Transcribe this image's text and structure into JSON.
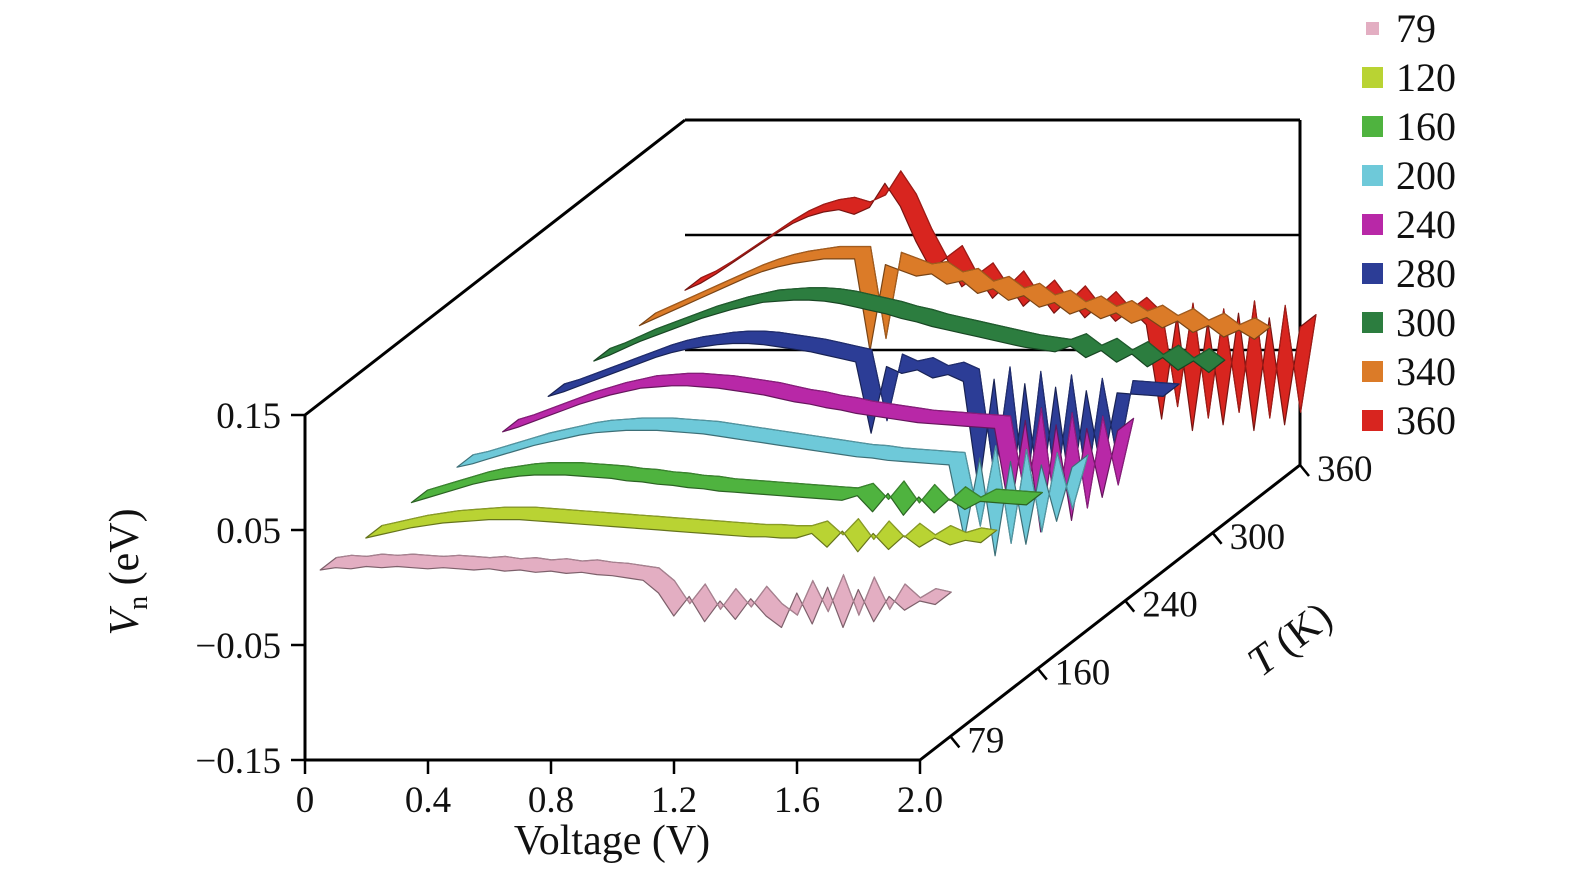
{
  "figure": {
    "background": "#ffffff"
  },
  "axes": {
    "x": {
      "label": "Voltage (V)",
      "ticks": [
        {
          "label": "0",
          "value": 0
        },
        {
          "label": "0.4",
          "value": 0.4
        },
        {
          "label": "0.8",
          "value": 0.8
        },
        {
          "label": "1.2",
          "value": 1.2
        },
        {
          "label": "1.6",
          "value": 1.6
        },
        {
          "label": "2.0",
          "value": 2.0
        }
      ]
    },
    "y": {
      "label": "V_n (eV)",
      "label_parts": {
        "variable": "V",
        "subscript": "n",
        "rest": " (eV)"
      },
      "ticks": [
        {
          "label": "0.15",
          "value": 0.15
        },
        {
          "label": "0.05",
          "value": 0.05
        },
        {
          "label": "−0.05",
          "value": -0.05
        },
        {
          "label": "−0.15",
          "value": -0.15
        }
      ],
      "grid_values": [
        0.05,
        -0.05
      ]
    },
    "z": {
      "label": "T (K)",
      "label_parts": {
        "variable": "T",
        "rest": " (K)"
      },
      "ticks": [
        "79",
        "160",
        "240",
        "300",
        "360"
      ]
    }
  },
  "legend": {
    "position": "top-right"
  },
  "chart_data": {
    "type": "line",
    "variant": "3d-waterfall",
    "title": "",
    "xlabel": "Voltage (V)",
    "ylabel": "V_n (eV)",
    "zlabel": "T (K)",
    "xlim": [
      0,
      2
    ],
    "ylim": [
      -0.15,
      0.15
    ],
    "temperatures_K": [
      79,
      120,
      160,
      200,
      240,
      280,
      300,
      340,
      360
    ],
    "x": [
      0,
      0.05,
      0.1,
      0.15,
      0.2,
      0.25,
      0.3,
      0.35,
      0.4,
      0.45,
      0.5,
      0.55,
      0.6,
      0.65,
      0.7,
      0.75,
      0.8,
      0.85,
      0.9,
      0.95,
      1,
      1.05,
      1.1,
      1.15,
      1.2,
      1.25,
      1.3,
      1.35,
      1.4,
      1.45,
      1.5,
      1.55,
      1.6,
      1.65,
      1.7,
      1.75,
      1.8,
      1.85,
      1.9,
      1.95,
      2
    ],
    "series": [
      {
        "name": "79",
        "temperature_K": 79,
        "color": "#e3aec2",
        "values": [
          0.005,
          0.007,
          0.006,
          0.008,
          0.007,
          0.008,
          0.007,
          0.006,
          0.007,
          0.006,
          0.005,
          0.006,
          0.004,
          0.005,
          0.003,
          0.004,
          0.002,
          0.003,
          0.001,
          0.0,
          -0.002,
          -0.004,
          -0.015,
          -0.035,
          -0.018,
          -0.04,
          -0.022,
          -0.038,
          -0.02,
          -0.035,
          -0.045,
          -0.015,
          -0.042,
          -0.01,
          -0.045,
          -0.012,
          -0.04,
          -0.018,
          -0.03,
          -0.022,
          -0.025
        ]
      },
      {
        "name": "120",
        "temperature_K": 120,
        "color": "#b9d333",
        "values": [
          0.002,
          0.005,
          0.008,
          0.011,
          0.013,
          0.015,
          0.016,
          0.017,
          0.018,
          0.018,
          0.018,
          0.017,
          0.016,
          0.015,
          0.014,
          0.013,
          0.012,
          0.011,
          0.01,
          0.009,
          0.008,
          0.007,
          0.006,
          0.005,
          0.004,
          0.003,
          0.003,
          0.002,
          0.002,
          0.006,
          -0.006,
          0.008,
          -0.01,
          0.006,
          -0.008,
          0.004,
          -0.006,
          0.002,
          -0.004,
          0.0,
          -0.002
        ]
      },
      {
        "name": "160",
        "temperature_K": 160,
        "color": "#4fb33f",
        "values": [
          0.002,
          0.006,
          0.01,
          0.014,
          0.018,
          0.021,
          0.023,
          0.025,
          0.026,
          0.026,
          0.026,
          0.025,
          0.024,
          0.023,
          0.021,
          0.02,
          0.018,
          0.017,
          0.015,
          0.014,
          0.012,
          0.011,
          0.01,
          0.009,
          0.008,
          0.007,
          0.006,
          0.005,
          0.004,
          0.008,
          -0.006,
          0.01,
          -0.009,
          0.007,
          -0.007,
          0.005,
          -0.004,
          0.003,
          0.002,
          0.001,
          0.0
        ]
      },
      {
        "name": "200",
        "temperature_K": 200,
        "color": "#6ec9d9",
        "values": [
          0.002,
          0.005,
          0.009,
          0.013,
          0.017,
          0.021,
          0.024,
          0.027,
          0.03,
          0.032,
          0.033,
          0.034,
          0.034,
          0.034,
          0.033,
          0.032,
          0.031,
          0.029,
          0.027,
          0.025,
          0.023,
          0.021,
          0.019,
          0.017,
          0.015,
          0.013,
          0.011,
          0.01,
          0.008,
          0.007,
          0.006,
          0.005,
          0.004,
          -0.06,
          0.01,
          -0.075,
          0.007,
          -0.065,
          0.004,
          -0.045,
          0.002
        ]
      },
      {
        "name": "240",
        "temperature_K": 240,
        "color": "#b828a7",
        "values": [
          0.002,
          0.006,
          0.011,
          0.016,
          0.021,
          0.026,
          0.03,
          0.034,
          0.037,
          0.04,
          0.041,
          0.042,
          0.042,
          0.041,
          0.04,
          0.038,
          0.036,
          0.034,
          0.031,
          0.028,
          0.026,
          0.023,
          0.021,
          0.018,
          0.016,
          0.014,
          0.012,
          0.01,
          0.009,
          0.008,
          0.007,
          0.006,
          0.005,
          -0.07,
          0.012,
          -0.085,
          0.008,
          -0.075,
          0.005,
          -0.055,
          0.003
        ]
      },
      {
        "name": "280",
        "temperature_K": 280,
        "color": "#2c3d96",
        "values": [
          0.002,
          0.006,
          0.011,
          0.016,
          0.021,
          0.026,
          0.031,
          0.036,
          0.04,
          0.043,
          0.045,
          0.047,
          0.048,
          0.048,
          0.047,
          0.045,
          0.043,
          0.041,
          0.038,
          0.035,
          0.032,
          -0.03,
          0.028,
          0.022,
          0.025,
          0.018,
          0.021,
          0.015,
          -0.08,
          0.017,
          -0.1,
          0.013,
          -0.09,
          0.01,
          -0.085,
          0.007,
          -0.065,
          0.005,
          0.004,
          0.003,
          0.002
        ]
      },
      {
        "name": "300",
        "temperature_K": 300,
        "color": "#2c7d3f",
        "values": [
          0.002,
          0.007,
          0.013,
          0.019,
          0.024,
          0.029,
          0.034,
          0.039,
          0.043,
          0.047,
          0.05,
          0.053,
          0.054,
          0.055,
          0.055,
          0.054,
          0.052,
          0.049,
          0.046,
          0.043,
          0.039,
          0.036,
          0.032,
          0.029,
          0.026,
          0.023,
          0.02,
          0.017,
          0.014,
          0.012,
          0.01,
          0.015,
          0.005,
          0.011,
          0.001,
          0.008,
          -0.003,
          0.005,
          -0.006,
          0.002,
          -0.008
        ]
      },
      {
        "name": "340",
        "temperature_K": 340,
        "color": "#db7b28",
        "values": [
          0.002,
          0.008,
          0.014,
          0.02,
          0.026,
          0.032,
          0.038,
          0.044,
          0.049,
          0.053,
          0.056,
          0.058,
          0.06,
          0.06,
          0.06,
          -0.02,
          0.055,
          0.05,
          0.045,
          0.047,
          0.038,
          0.041,
          0.03,
          0.034,
          0.024,
          0.028,
          0.018,
          0.022,
          0.012,
          0.017,
          0.008,
          0.013,
          0.004,
          0.009,
          0.0,
          0.006,
          -0.004,
          0.002,
          -0.008,
          -0.002,
          -0.01
        ]
      },
      {
        "name": "360",
        "temperature_K": 360,
        "color": "#d8251f",
        "values": [
          0.002,
          0.008,
          0.016,
          0.025,
          0.034,
          0.043,
          0.052,
          0.06,
          0.066,
          0.07,
          0.072,
          0.068,
          0.074,
          0.095,
          0.075,
          0.045,
          0.02,
          0.03,
          0.005,
          0.015,
          -0.005,
          0.008,
          -0.012,
          0.0,
          -0.018,
          -0.005,
          -0.022,
          -0.01,
          -0.025,
          -0.015,
          -0.028,
          -0.11,
          -0.02,
          -0.12,
          -0.025,
          -0.115,
          -0.018,
          -0.12,
          -0.022,
          -0.115,
          -0.03
        ]
      }
    ]
  }
}
